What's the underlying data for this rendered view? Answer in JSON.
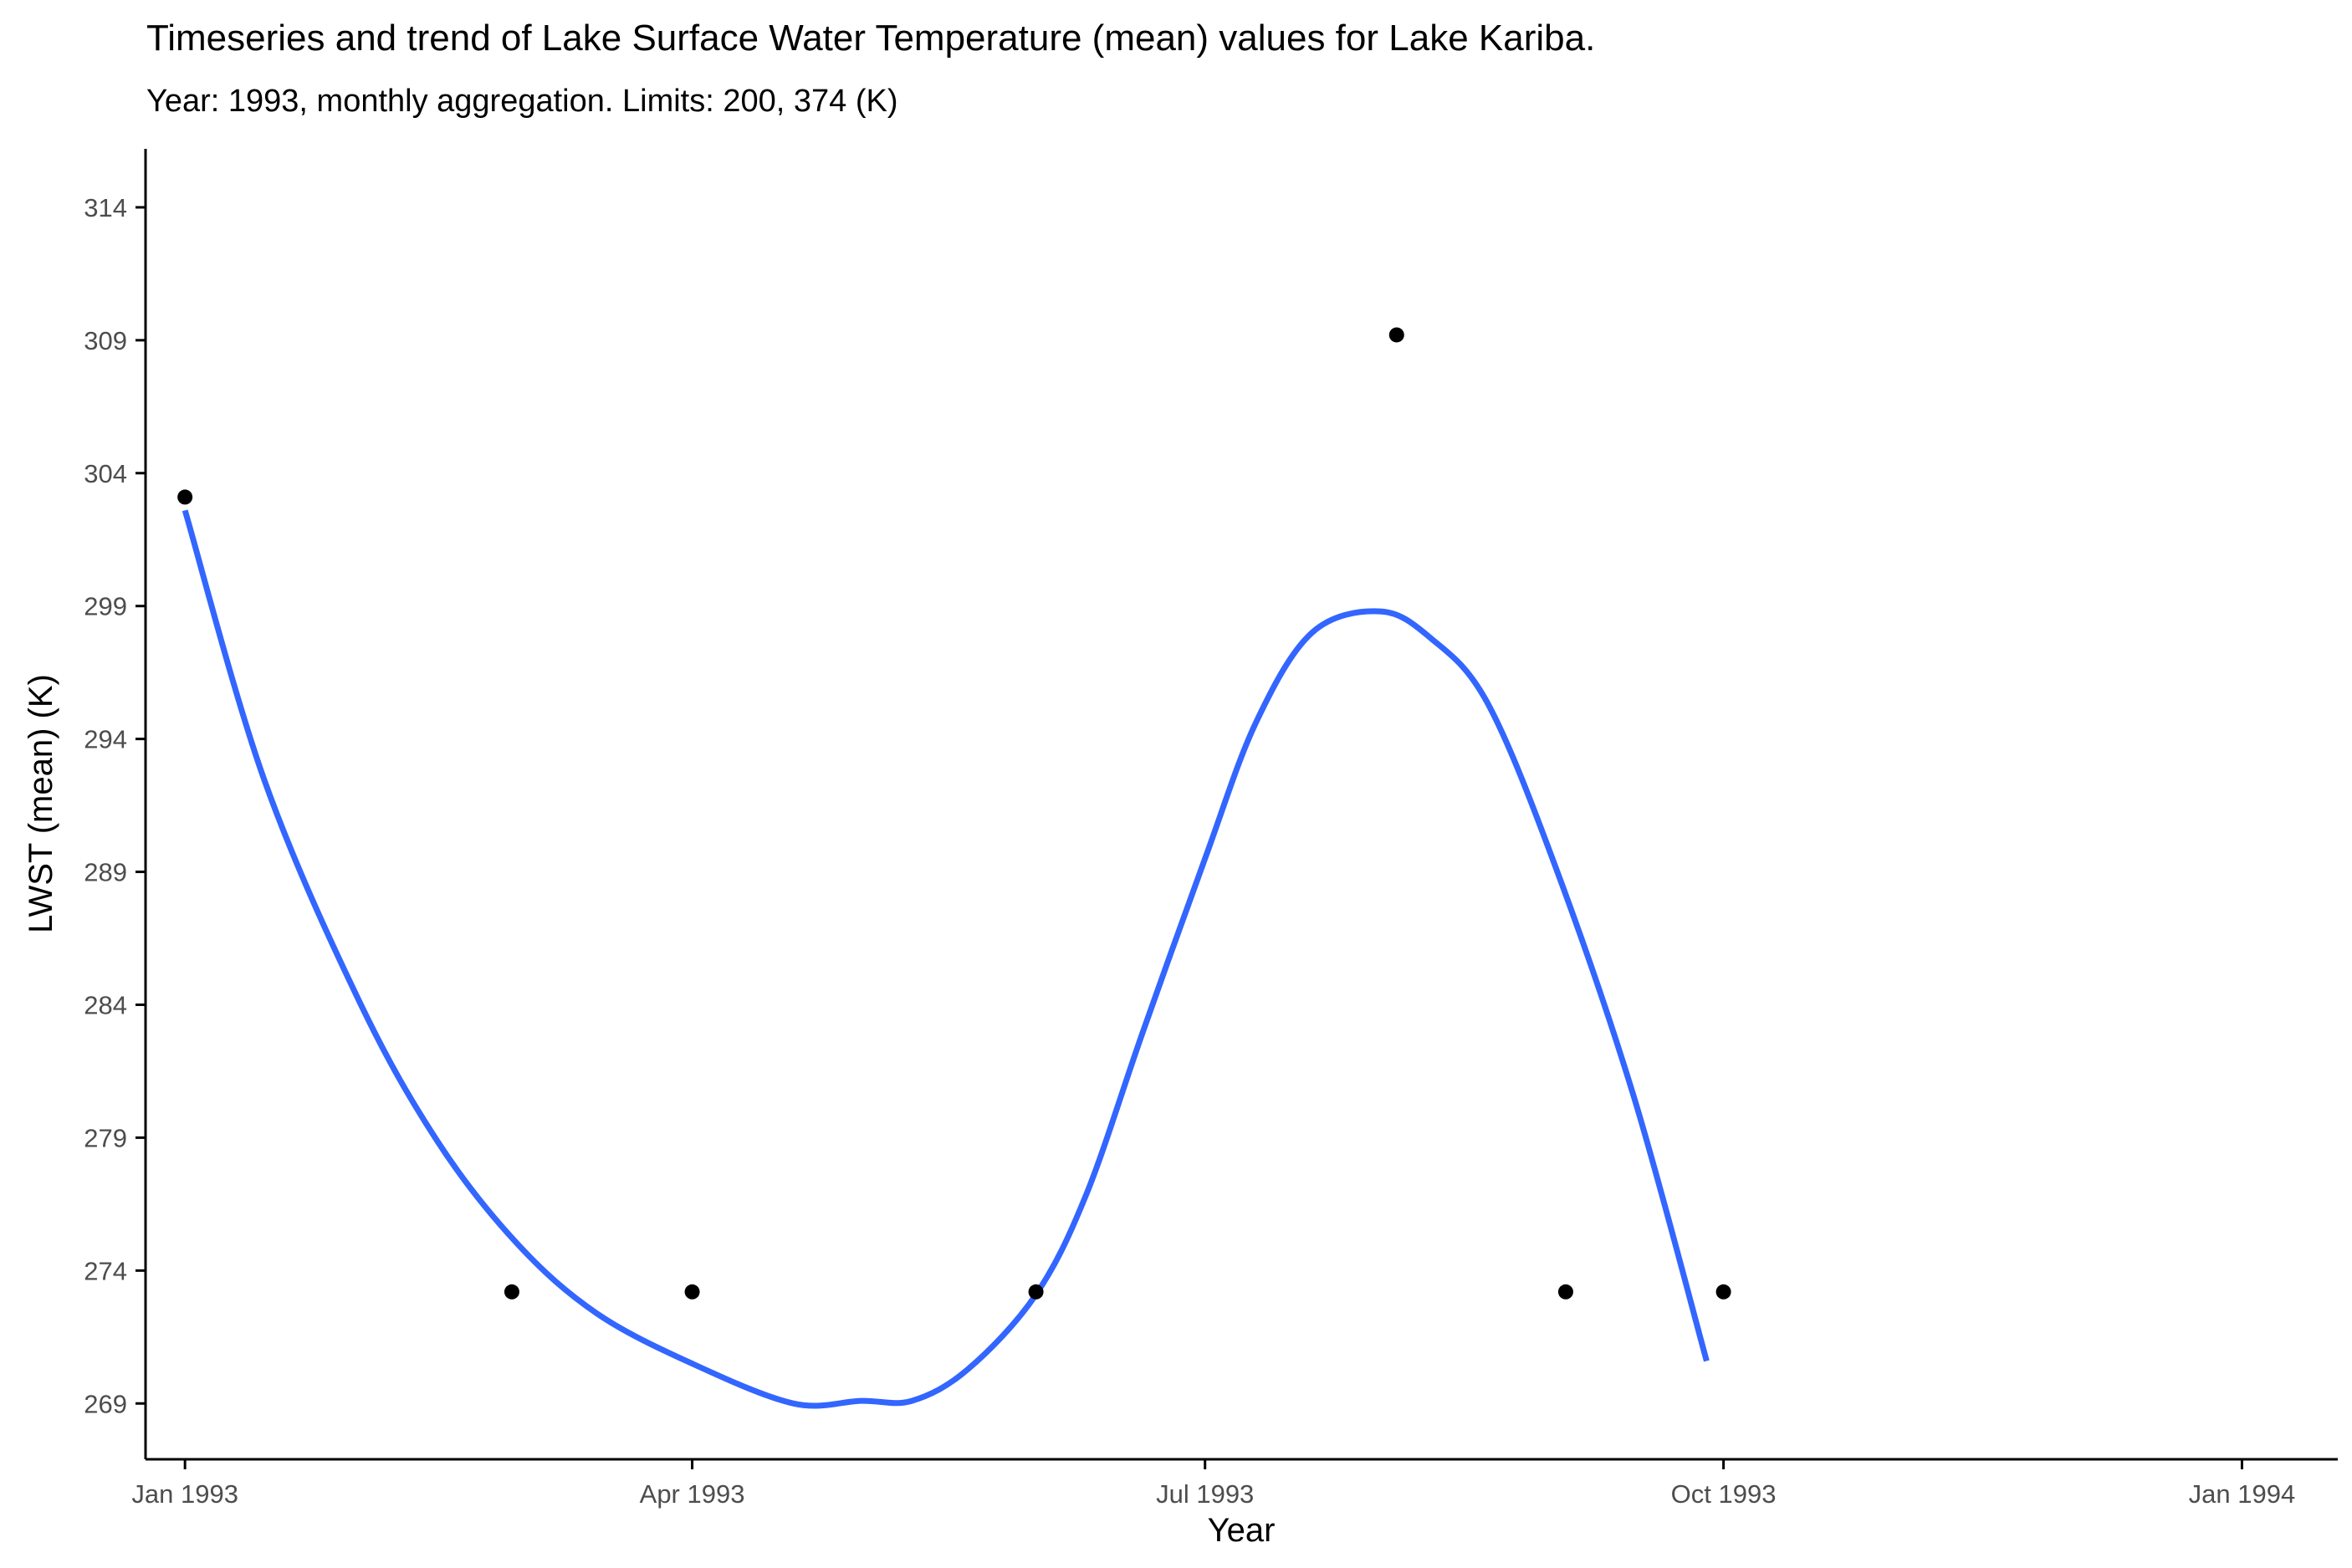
{
  "chart_data": {
    "type": "scatter",
    "title": "Timeseries and trend of Lake Surface Water Temperature (mean) values for Lake Kariba.",
    "subtitle": "Year: 1993, monthly aggregation. Limits: 200, 374 (K)",
    "xlabel": "Year",
    "ylabel": "LWST (mean) (K)",
    "x_ticks": [
      "Jan 1993",
      "Apr 1993",
      "Jul 1993",
      "Oct 1993",
      "Jan 1994"
    ],
    "x_tick_dates": [
      "1993-01-01",
      "1993-04-01",
      "1993-07-01",
      "1993-10-01",
      "1994-01-01"
    ],
    "xlim": [
      "1992-12-25",
      "1994-01-18"
    ],
    "y_ticks": [
      269,
      274,
      279,
      284,
      289,
      294,
      299,
      304,
      309,
      314
    ],
    "ylim": [
      266.9,
      316.2
    ],
    "grid": false,
    "legend": "none",
    "colors": {
      "points": "#000000",
      "trend": "#3366ff",
      "axis": "#000000",
      "tick_text": "#4d4d4d"
    },
    "series": [
      {
        "type": "scatter",
        "x": [
          "1993-01-01",
          "1993-02-28",
          "1993-04-01",
          "1993-06-01",
          "1993-08-04",
          "1993-09-03",
          "1993-10-01"
        ],
        "y": [
          303.1,
          273.2,
          273.2,
          273.2,
          309.2,
          273.2,
          273.2
        ]
      },
      {
        "type": "line",
        "x": [
          "1993-01-01",
          "1993-01-15",
          "1993-02-01",
          "1993-02-15",
          "1993-03-01",
          "1993-03-15",
          "1993-04-01",
          "1993-04-19",
          "1993-05-01",
          "1993-05-10",
          "1993-05-20",
          "1993-06-01",
          "1993-06-10",
          "1993-06-20",
          "1993-07-01",
          "1993-07-10",
          "1993-07-20",
          "1993-08-01",
          "1993-08-10",
          "1993-08-20",
          "1993-09-01",
          "1993-09-15",
          "1993-09-28"
        ],
        "y": [
          302.6,
          292.5,
          284.1,
          278.8,
          275.0,
          272.4,
          270.5,
          269.0,
          269.1,
          269.1,
          270.3,
          273.1,
          276.9,
          283.0,
          289.5,
          294.6,
          298.0,
          298.8,
          297.8,
          295.4,
          289.3,
          280.6,
          270.6
        ]
      }
    ]
  }
}
